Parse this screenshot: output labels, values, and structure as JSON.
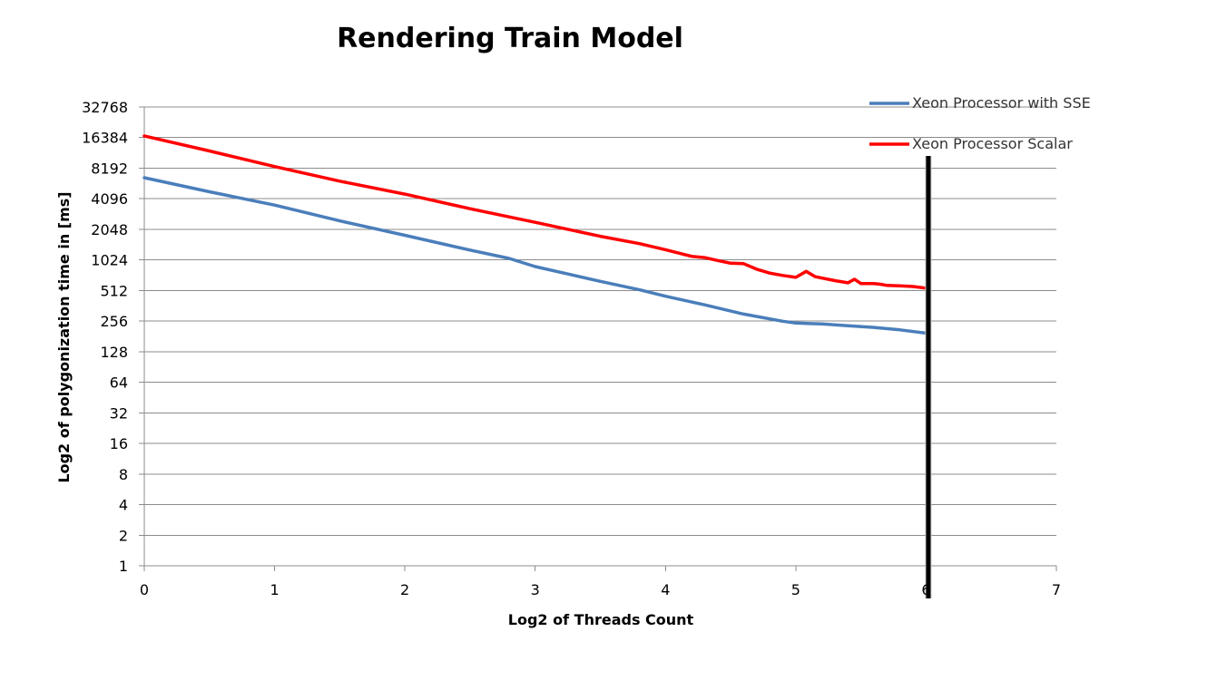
{
  "chart_data": {
    "type": "line",
    "title": "Rendering Train Model",
    "xlabel": "Log2 of Threads Count",
    "ylabel": "Log2 of polygonization time in [ms]",
    "xlim": [
      0,
      7
    ],
    "ylim": [
      1,
      32768
    ],
    "yscale": "log2",
    "x_ticks": [
      "0",
      "1",
      "2",
      "3",
      "4",
      "5",
      "6",
      "7"
    ],
    "y_ticks": [
      "1",
      "2",
      "4",
      "8",
      "16",
      "32",
      "64",
      "128",
      "256",
      "512",
      "1024",
      "2048",
      "4096",
      "8192",
      "16384",
      "32768"
    ],
    "grid": "horizontal",
    "legend_position": "top-right",
    "marker_line_x": 6,
    "series": [
      {
        "name": "Xeon Processor with SSE",
        "color": "#4a7ebb",
        "x": [
          0,
          0.5,
          1,
          1.5,
          2,
          2.5,
          2.8,
          3,
          3.5,
          3.8,
          4,
          4.3,
          4.6,
          4.9,
          5,
          5.2,
          5.4,
          5.6,
          5.8,
          6
        ],
        "y": [
          6600,
          4800,
          3550,
          2480,
          1790,
          1280,
          1060,
          880,
          630,
          520,
          450,
          370,
          300,
          255,
          245,
          240,
          230,
          222,
          210,
          195
        ]
      },
      {
        "name": "Xeon Processor Scalar",
        "color": "#ff0000",
        "x": [
          0,
          0.5,
          1,
          1.5,
          2,
          2.5,
          3,
          3.5,
          3.8,
          4,
          4.2,
          4.3,
          4.4,
          4.5,
          4.6,
          4.7,
          4.8,
          4.9,
          5,
          5.08,
          5.15,
          5.3,
          5.4,
          5.45,
          5.5,
          5.6,
          5.65,
          5.7,
          5.8,
          5.9,
          6
        ],
        "y": [
          17000,
          12100,
          8500,
          6100,
          4550,
          3270,
          2400,
          1750,
          1480,
          1290,
          1110,
          1080,
          1010,
          950,
          940,
          830,
          760,
          720,
          690,
          790,
          700,
          640,
          610,
          660,
          600,
          600,
          590,
          575,
          570,
          560,
          540
        ]
      }
    ]
  }
}
